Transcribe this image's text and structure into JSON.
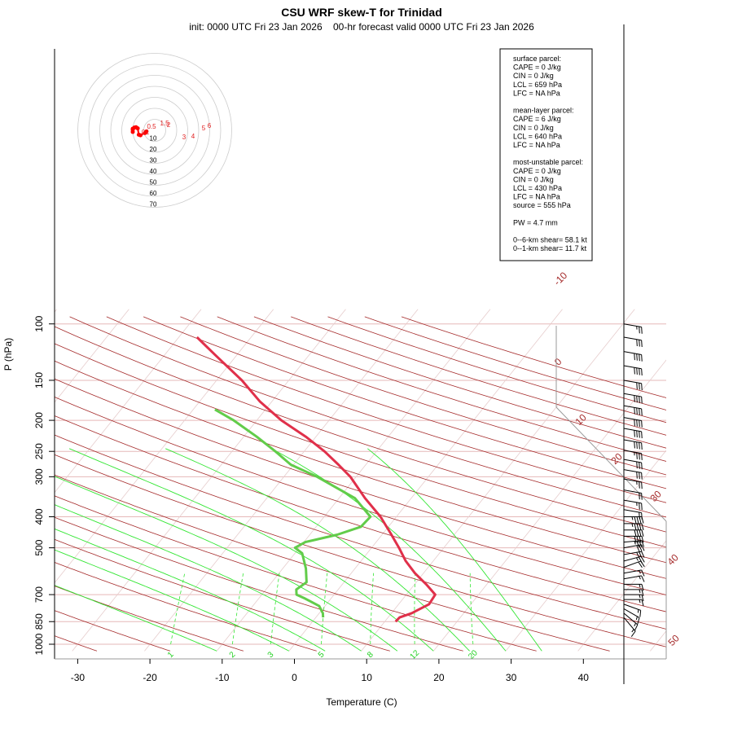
{
  "title": "CSU WRF skew-T for Trinidad",
  "subtitle": "init: 0000 UTC Fri 23 Jan 2026    00-hr forecast valid 0000 UTC Fri 23 Jan 2026",
  "chart_data": {
    "type": "line",
    "xlabel": "Temperature (C)",
    "ylabel": "P (hPa)",
    "pressure_ticks": [
      100,
      150,
      200,
      250,
      300,
      400,
      500,
      700,
      850,
      1000
    ],
    "temperature_ticks": [
      -30,
      -20,
      -10,
      0,
      10,
      20,
      30,
      40
    ],
    "mixing_ratio_labels": [
      "1",
      "2",
      "3",
      "5",
      "8",
      "12",
      "20"
    ],
    "isotherm_labels": [
      "-10",
      "0",
      "10",
      "20",
      "30",
      "40",
      "50"
    ],
    "hodograph_ring_labels": [
      "10",
      "20",
      "30",
      "40",
      "50",
      "60",
      "70"
    ],
    "hodograph_point_labels": [
      "0",
      "0.5",
      "1",
      "1.5",
      "2",
      "3",
      "4",
      "5",
      "6"
    ],
    "hodograph_points": [
      [
        -20.0,
        1.5
      ],
      [
        -20.0,
        0.5
      ],
      [
        -20.0,
        -1.5
      ],
      [
        -18.5,
        2.5
      ],
      [
        -17.0,
        2.8
      ],
      [
        -15.5,
        1.8
      ],
      [
        -14.5,
        -4.0
      ],
      [
        -13.0,
        -4.5
      ],
      [
        -9.0,
        -2.5
      ],
      [
        -7.5,
        -1.0
      ]
    ],
    "series": [
      {
        "name": "temperature",
        "color": "#e0304a",
        "points": [
          [
            850,
            11.5
          ],
          [
            825,
            11.6
          ],
          [
            800,
            12.8
          ],
          [
            750,
            14.2
          ],
          [
            700,
            14.0
          ],
          [
            650,
            11.6
          ],
          [
            600,
            8.8
          ],
          [
            550,
            6.2
          ],
          [
            500,
            3.8
          ],
          [
            450,
            1.0
          ],
          [
            400,
            -2.2
          ],
          [
            350,
            -6.4
          ],
          [
            300,
            -10.8
          ],
          [
            275,
            -13.8
          ],
          [
            250,
            -17.2
          ],
          [
            225,
            -21.4
          ],
          [
            200,
            -26.6
          ],
          [
            175,
            -31.6
          ],
          [
            150,
            -36.5
          ],
          [
            125,
            -43.0
          ],
          [
            110,
            -47.5
          ]
        ]
      },
      {
        "name": "dewpoint",
        "color": "#62cc4a",
        "points": [
          [
            825,
            1.0
          ],
          [
            800,
            0.5
          ],
          [
            760,
            -0.8
          ],
          [
            720,
            -3.6
          ],
          [
            700,
            -5.2
          ],
          [
            675,
            -5.8
          ],
          [
            640,
            -5.2
          ],
          [
            580,
            -6.8
          ],
          [
            520,
            -9.0
          ],
          [
            500,
            -10.6
          ],
          [
            480,
            -9.8
          ],
          [
            455,
            -6.2
          ],
          [
            430,
            -3.8
          ],
          [
            400,
            -3.6
          ],
          [
            350,
            -7.8
          ],
          [
            300,
            -15.4
          ],
          [
            275,
            -20.4
          ],
          [
            250,
            -24.0
          ],
          [
            225,
            -28.2
          ],
          [
            200,
            -33.2
          ],
          [
            185,
            -37.0
          ]
        ]
      }
    ],
    "wind_barbs": [
      {
        "p": 100,
        "spd": 25,
        "dir": 100
      },
      {
        "p": 110,
        "spd": 30,
        "dir": 100
      },
      {
        "p": 122,
        "spd": 40,
        "dir": 100
      },
      {
        "p": 135,
        "spd": 40,
        "dir": 100
      },
      {
        "p": 150,
        "spd": 30,
        "dir": 100
      },
      {
        "p": 165,
        "spd": 40,
        "dir": 100
      },
      {
        "p": 180,
        "spd": 40,
        "dir": 100
      },
      {
        "p": 196,
        "spd": 40,
        "dir": 100
      },
      {
        "p": 212,
        "spd": 40,
        "dir": 100
      },
      {
        "p": 230,
        "spd": 40,
        "dir": 100
      },
      {
        "p": 248,
        "spd": 35,
        "dir": 100
      },
      {
        "p": 265,
        "spd": 30,
        "dir": 100
      },
      {
        "p": 285,
        "spd": 30,
        "dir": 100
      },
      {
        "p": 305,
        "spd": 25,
        "dir": 100
      },
      {
        "p": 330,
        "spd": 20,
        "dir": 100
      },
      {
        "p": 355,
        "spd": 25,
        "dir": 100
      },
      {
        "p": 380,
        "spd": 20,
        "dir": 100
      },
      {
        "p": 400,
        "spd": 45,
        "dir": 90
      },
      {
        "p": 420,
        "spd": 45,
        "dir": 90
      },
      {
        "p": 440,
        "spd": 40,
        "dir": 90
      },
      {
        "p": 460,
        "spd": 40,
        "dir": 90
      },
      {
        "p": 480,
        "spd": 35,
        "dir": 85
      },
      {
        "p": 500,
        "spd": 30,
        "dir": 80
      },
      {
        "p": 525,
        "spd": 30,
        "dir": 80
      },
      {
        "p": 550,
        "spd": 25,
        "dir": 75
      },
      {
        "p": 575,
        "spd": 20,
        "dir": 70
      },
      {
        "p": 600,
        "spd": 15,
        "dir": 80
      },
      {
        "p": 625,
        "spd": 15,
        "dir": 80
      },
      {
        "p": 650,
        "spd": 15,
        "dir": 90
      },
      {
        "p": 675,
        "spd": 15,
        "dir": 90
      },
      {
        "p": 700,
        "spd": 15,
        "dir": 90
      },
      {
        "p": 725,
        "spd": 15,
        "dir": 90
      },
      {
        "p": 750,
        "spd": 15,
        "dir": 110
      },
      {
        "p": 775,
        "spd": 15,
        "dir": 120
      },
      {
        "p": 800,
        "spd": 15,
        "dir": 130
      },
      {
        "p": 825,
        "spd": 15,
        "dir": 140
      }
    ]
  },
  "info_box": {
    "lines": [
      "surface parcel:",
      "CAPE = 0 J/kg",
      "CIN = 0 J/kg",
      "LCL = 659 hPa",
      "LFC = NA hPa",
      "",
      "mean-layer parcel:",
      "CAPE = 6 J/kg",
      "CIN = 0 J/kg",
      "LCL = 640 hPa",
      "LFC = NA hPa",
      "",
      "most-unstable parcel:",
      "CAPE = 0 J/kg",
      "CIN = 0 J/kg",
      "LCL = 430 hPa",
      "LFC = NA hPa",
      "source = 555 hPa",
      "",
      "PW =  4.7 mm",
      "",
      "0--6-km shear= 58.1 kt",
      "0--1-km shear= 11.7 kt"
    ]
  }
}
